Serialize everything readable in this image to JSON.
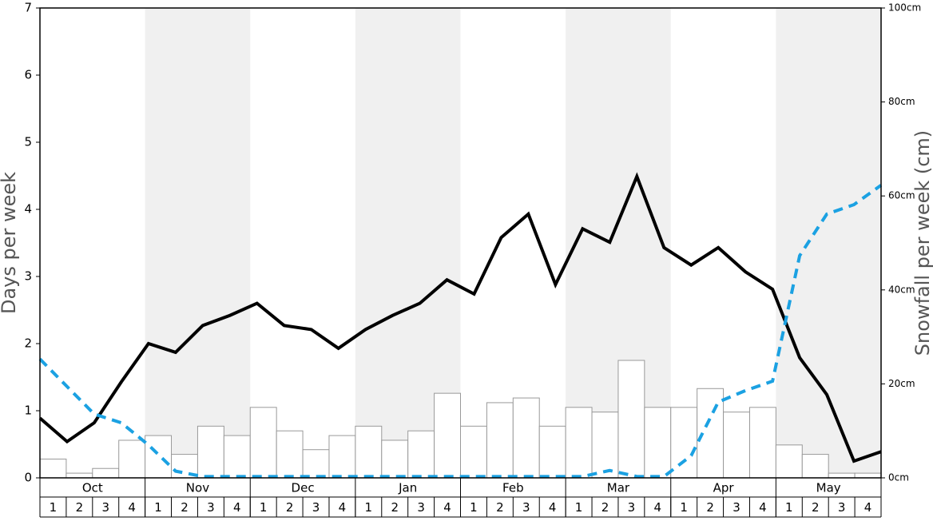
{
  "chart_data": {
    "type": "combo",
    "y_label": "Days per week",
    "y2_label": "Snowfall per week (cm)",
    "months": [
      "Oct",
      "Nov",
      "Dec",
      "Jan",
      "Feb",
      "Mar",
      "Apr",
      "May"
    ],
    "categories": [
      "1",
      "2",
      "3",
      "4",
      "1",
      "2",
      "3",
      "4",
      "1",
      "2",
      "3",
      "4",
      "1",
      "2",
      "3",
      "4",
      "1",
      "2",
      "3",
      "4",
      "1",
      "2",
      "3",
      "4",
      "1",
      "2",
      "3",
      "4",
      "1",
      "2",
      "3",
      "4"
    ],
    "ylim": [
      0,
      7
    ],
    "yticks": [
      0,
      1,
      2,
      3,
      4,
      5,
      6,
      7
    ],
    "y2lim": [
      0,
      100
    ],
    "y2ticks": [
      {
        "value": 0,
        "label": "0cm"
      },
      {
        "value": 20,
        "label": "20cm"
      },
      {
        "value": 40,
        "label": "40cm"
      },
      {
        "value": 60,
        "label": "60cm"
      },
      {
        "value": 80,
        "label": "80cm"
      },
      {
        "value": 100,
        "label": "100cm"
      }
    ],
    "band_color": "#f0f0f0",
    "series": [
      {
        "type": "bar",
        "axis": "y2",
        "color": "#ffffff",
        "values": [
          4,
          1,
          2,
          8,
          9,
          5,
          11,
          9,
          15,
          10,
          6,
          9,
          11,
          8,
          10,
          18,
          11,
          16,
          17,
          11,
          15,
          14,
          25,
          15,
          15,
          19,
          14,
          15,
          7,
          5,
          1,
          1
        ]
      },
      {
        "type": "line",
        "color": "#000000",
        "values": [
          0.89,
          0.54,
          0.82,
          1.43,
          2.0,
          1.87,
          2.27,
          2.42,
          2.6,
          2.27,
          2.21,
          1.93,
          2.21,
          2.42,
          2.6,
          2.95,
          2.74,
          3.58,
          3.93,
          2.88,
          3.71,
          3.51,
          4.49,
          3.43,
          3.17,
          3.43,
          3.07,
          2.81,
          1.79,
          1.24,
          0.25,
          0.39
        ]
      },
      {
        "type": "line",
        "color": "#1ba1e2",
        "dashed": true,
        "values": [
          1.77,
          1.36,
          0.95,
          0.82,
          0.49,
          0.1,
          0.02,
          0.02,
          0.02,
          0.02,
          0.02,
          0.02,
          0.02,
          0.02,
          0.02,
          0.02,
          0.02,
          0.02,
          0.02,
          0.02,
          0.02,
          0.11,
          0.02,
          0.02,
          0.33,
          1.13,
          1.3,
          1.44,
          3.31,
          3.93,
          4.07,
          4.36
        ]
      }
    ]
  }
}
